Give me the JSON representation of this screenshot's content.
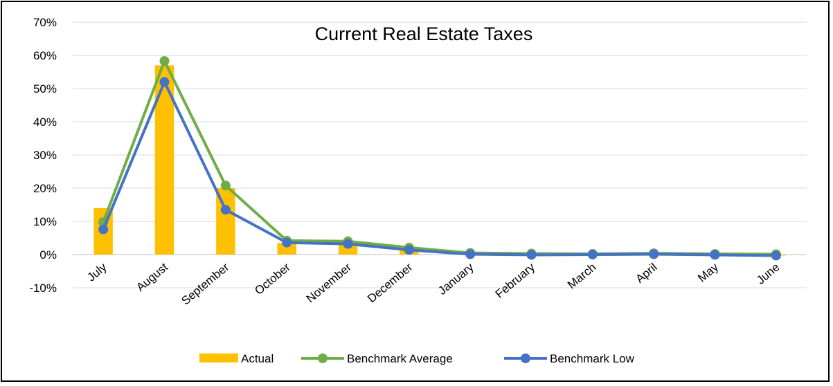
{
  "chart_data": {
    "type": "bar",
    "title": "Current Real Estate Taxes",
    "xlabel": "",
    "ylabel": "",
    "ylim": [
      -10,
      70
    ],
    "yticks": [
      "-10%",
      "0%",
      "10%",
      "20%",
      "30%",
      "40%",
      "50%",
      "60%",
      "70%"
    ],
    "ytick_values": [
      -10,
      0,
      10,
      20,
      30,
      40,
      50,
      60,
      70
    ],
    "grid": true,
    "legend_position": "bottom",
    "categories": [
      "July",
      "August",
      "September",
      "October",
      "November",
      "December",
      "January",
      "February",
      "March",
      "April",
      "May",
      "June"
    ],
    "series": [
      {
        "name": "Actual",
        "kind": "bar",
        "color": "#FFC000",
        "values": [
          14,
          57,
          20,
          3.5,
          3.5,
          1.5,
          0.3,
          0.1,
          0.1,
          0.2,
          0.1,
          -0.3
        ]
      },
      {
        "name": "Benchmark Average",
        "kind": "line",
        "color": "#70AD47",
        "values": [
          9.8,
          58.3,
          20.8,
          4.2,
          4.0,
          2.1,
          0.5,
          0.3,
          0.2,
          0.4,
          0.2,
          0.1
        ]
      },
      {
        "name": "Benchmark Low",
        "kind": "line",
        "color": "#4472C4",
        "values": [
          7.6,
          52.0,
          13.5,
          3.6,
          3.2,
          1.4,
          0.1,
          -0.1,
          0.0,
          0.1,
          -0.1,
          -0.3
        ]
      }
    ]
  }
}
